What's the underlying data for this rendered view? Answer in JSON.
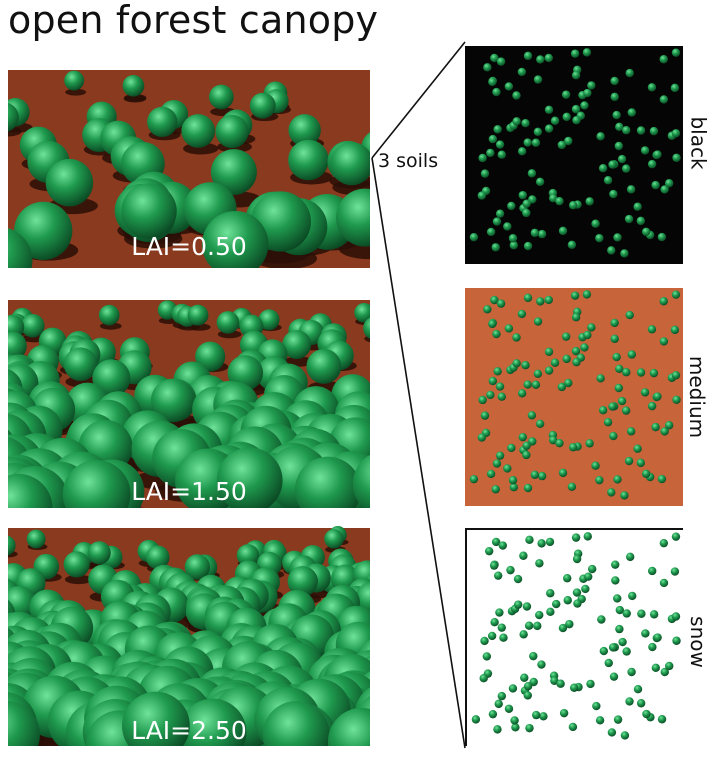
{
  "title": "open forest canopy",
  "scenes": [
    {
      "lai_label": "LAI=0.50",
      "density": 0.5
    },
    {
      "lai_label": "LAI=1.50",
      "density": 1.5
    },
    {
      "lai_label": "LAI=2.50",
      "density": 2.5
    }
  ],
  "soils_label": "3 soils",
  "soils": [
    {
      "label": "black",
      "color": "#050505"
    },
    {
      "label": "medium",
      "color": "#c8643a"
    },
    {
      "label": "snow",
      "color": "#ffffff"
    }
  ],
  "colors": {
    "ground": "#8a3a1e",
    "sky": "#ffffff",
    "crown": "#1f9a4e",
    "crown_highlight": "#6fe39a",
    "crown_dark": "#0b4a24",
    "shadow": "#2a0e06"
  }
}
